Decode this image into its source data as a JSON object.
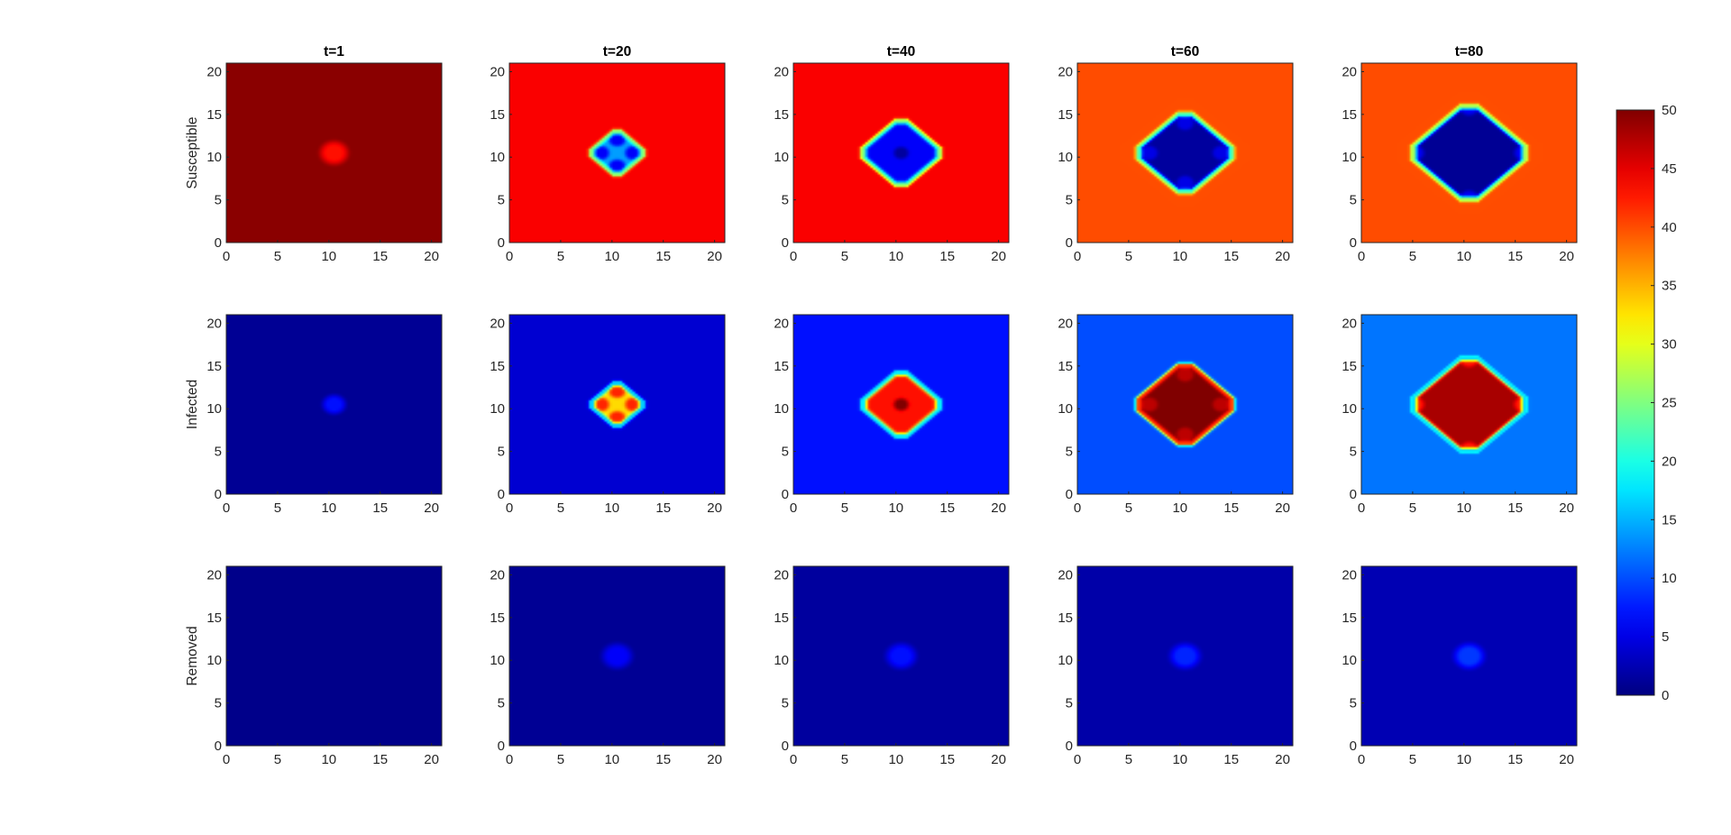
{
  "chart_data": {
    "type": "heatmap",
    "colormap": "jet",
    "colorbar": {
      "min": 0,
      "max": 50,
      "ticks": [
        0,
        5,
        10,
        15,
        20,
        25,
        30,
        35,
        40,
        45,
        50
      ]
    },
    "xlim": [
      0,
      21
    ],
    "ylim": [
      0,
      21
    ],
    "xticks": [
      0,
      5,
      10,
      15,
      20
    ],
    "yticks": [
      0,
      5,
      10,
      15,
      20
    ],
    "column_titles": [
      "t=1",
      "t=20",
      "t=40",
      "t=60",
      "t=80"
    ],
    "row_labels": [
      "Susceptible",
      "Infected",
      "Removed"
    ],
    "panels": [
      {
        "row": 0,
        "title": "t=1",
        "background": 49.5,
        "center": [
          10.5,
          10.5
        ],
        "blob": {
          "value": 43,
          "radius": 1.2
        }
      },
      {
        "row": 0,
        "title": "t=20",
        "background": 44,
        "center": [
          10.5,
          10.5
        ],
        "diamond": {
          "radius": 2.8,
          "core": 14,
          "corners": 6,
          "corner_offset": 1.6,
          "edge": 24
        }
      },
      {
        "row": 0,
        "title": "t=40",
        "background": 44,
        "center": [
          10.5,
          10.5
        ],
        "diamond": {
          "radius": 4.2,
          "core": 1.5,
          "corners": 6,
          "corner_offset": 0,
          "edge": 24
        }
      },
      {
        "row": 0,
        "title": "t=60",
        "background": 40,
        "center": [
          10.5,
          10.5
        ],
        "diamond": {
          "radius": 5.2,
          "core": 1.5,
          "corners": 5,
          "corner_offset": 3.5,
          "edge": 25
        }
      },
      {
        "row": 0,
        "title": "t=80",
        "background": 40,
        "center": [
          10.5,
          10.5
        ],
        "diamond": {
          "radius": 6.2,
          "core": 1,
          "corners": 5,
          "corner_offset": 5.2,
          "edge": 26
        }
      },
      {
        "row": 1,
        "title": "t=1",
        "background": 1,
        "center": [
          10.5,
          10.5
        ],
        "blob": {
          "value": 7,
          "radius": 1.0
        }
      },
      {
        "row": 1,
        "title": "t=20",
        "background": 4,
        "center": [
          10.5,
          10.5
        ],
        "diamond": {
          "radius": 2.8,
          "core": 33,
          "corners": 42,
          "corner_offset": 1.6,
          "edge": 16
        }
      },
      {
        "row": 1,
        "title": "t=40",
        "background": 7,
        "center": [
          10.5,
          10.5
        ],
        "diamond": {
          "radius": 4.2,
          "core": 50,
          "corners": 43,
          "corner_offset": 0,
          "edge": 18
        }
      },
      {
        "row": 1,
        "title": "t=60",
        "background": 10,
        "center": [
          10.5,
          10.5
        ],
        "diamond": {
          "radius": 5.2,
          "core": 50,
          "corners": 47,
          "corner_offset": 3.5,
          "edge": 40
        }
      },
      {
        "row": 1,
        "title": "t=80",
        "background": 12,
        "center": [
          10.5,
          10.5
        ],
        "diamond": {
          "radius": 6.2,
          "core": 48,
          "corners": 43,
          "corner_offset": 5.2,
          "edge": 17
        }
      },
      {
        "row": 2,
        "title": "t=1",
        "background": 0.5,
        "center": [
          10.5,
          10.5
        ],
        "blob": {
          "value": 0.5,
          "radius": 1.0
        }
      },
      {
        "row": 2,
        "title": "t=20",
        "background": 1,
        "center": [
          10.5,
          10.5
        ],
        "blob": {
          "value": 6,
          "radius": 1.3
        }
      },
      {
        "row": 2,
        "title": "t=40",
        "background": 1.5,
        "center": [
          10.5,
          10.5
        ],
        "blob": {
          "value": 7,
          "radius": 1.3
        }
      },
      {
        "row": 2,
        "title": "t=60",
        "background": 2,
        "center": [
          10.5,
          10.5
        ],
        "blob": {
          "value": 8,
          "radius": 1.3
        }
      },
      {
        "row": 2,
        "title": "t=80",
        "background": 2.5,
        "center": [
          10.5,
          10.5
        ],
        "blob": {
          "value": 9,
          "radius": 1.3
        }
      }
    ]
  }
}
